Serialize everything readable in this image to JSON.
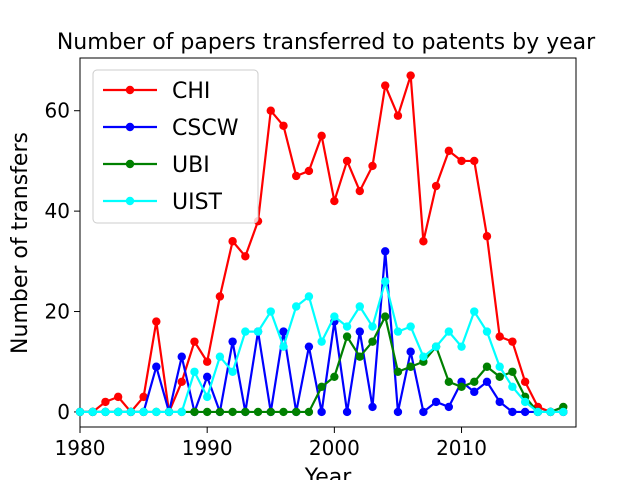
{
  "chart_data": {
    "type": "line",
    "title": "Number of papers transferred to patents by year",
    "xlabel": "Year",
    "ylabel": "Number of transfers",
    "xlim": [
      1980,
      2019
    ],
    "ylim": [
      -3,
      70.5
    ],
    "xticks": [
      1980,
      1990,
      2000,
      2010
    ],
    "yticks": [
      0,
      20,
      40,
      60
    ],
    "grid": false,
    "legend_position": "top-left",
    "x": [
      1980,
      1981,
      1982,
      1983,
      1984,
      1985,
      1986,
      1987,
      1988,
      1989,
      1990,
      1991,
      1992,
      1993,
      1994,
      1995,
      1996,
      1997,
      1998,
      1999,
      2000,
      2001,
      2002,
      2003,
      2004,
      2005,
      2006,
      2007,
      2008,
      2009,
      2010,
      2011,
      2012,
      2013,
      2014,
      2015,
      2016,
      2017,
      2018
    ],
    "series": [
      {
        "name": "CHI",
        "color": "#ff0000",
        "values": [
          0,
          0,
          2,
          3,
          0,
          3,
          18,
          0,
          6,
          14,
          10,
          23,
          34,
          31,
          38,
          60,
          57,
          47,
          48,
          55,
          42,
          50,
          44,
          49,
          65,
          59,
          67,
          34,
          45,
          52,
          50,
          50,
          35,
          15,
          14,
          6,
          1,
          0,
          0
        ]
      },
      {
        "name": "CSCW",
        "color": "#0000ff",
        "values": [
          0,
          0,
          0,
          0,
          0,
          0,
          9,
          0,
          11,
          0,
          7,
          0,
          14,
          0,
          16,
          0,
          16,
          0,
          13,
          0,
          18,
          0,
          16,
          1,
          32,
          0,
          12,
          0,
          2,
          1,
          6,
          4,
          6,
          2,
          0,
          0,
          0,
          0,
          0
        ]
      },
      {
        "name": "UBI",
        "color": "#008000",
        "values": [
          0,
          0,
          0,
          0,
          0,
          0,
          0,
          0,
          0,
          0,
          0,
          0,
          0,
          0,
          0,
          0,
          0,
          0,
          0,
          5,
          7,
          15,
          11,
          14,
          19,
          8,
          9,
          10,
          13,
          6,
          5,
          6,
          9,
          7,
          8,
          3,
          0,
          0,
          1
        ]
      },
      {
        "name": "UIST",
        "color": "#00ffff",
        "values": [
          0,
          0,
          0,
          0,
          0,
          0,
          0,
          0,
          0,
          8,
          3,
          11,
          8,
          16,
          16,
          20,
          13,
          21,
          23,
          14,
          19,
          17,
          21,
          17,
          26,
          16,
          17,
          11,
          13,
          16,
          13,
          20,
          16,
          9,
          5,
          2,
          0,
          0,
          0
        ]
      }
    ]
  }
}
